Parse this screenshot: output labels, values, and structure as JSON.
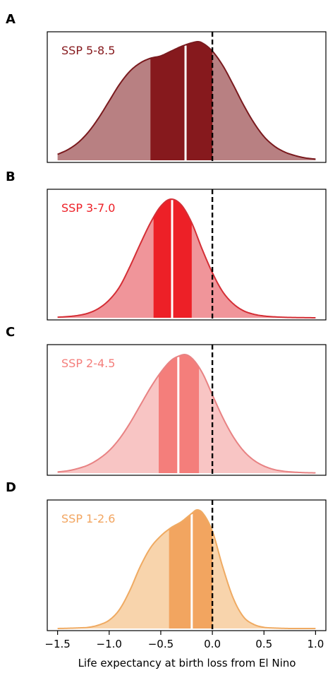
{
  "chart_data": [
    {
      "type": "area",
      "panel": "A",
      "label": "SSP 5-8.5",
      "colors": {
        "line": "#7a1a1e",
        "fill": "#b88082",
        "band": "#86191d"
      },
      "xlim": [
        -1.6,
        1.1
      ],
      "reference_line_x": 0.0,
      "mode": -0.14,
      "median": -0.26,
      "band": [
        -0.6,
        0.0
      ],
      "density": {
        "x": [
          -1.5,
          -1.4,
          -1.3,
          -1.2,
          -1.1,
          -1.0,
          -0.9,
          -0.8,
          -0.7,
          -0.6,
          -0.5,
          -0.4,
          -0.3,
          -0.2,
          -0.14,
          -0.1,
          0.0,
          0.1,
          0.2,
          0.3,
          0.4,
          0.5,
          0.6,
          0.7,
          0.8,
          0.9,
          1.0
        ],
        "y": [
          0.05,
          0.09,
          0.15,
          0.24,
          0.36,
          0.5,
          0.64,
          0.75,
          0.82,
          0.86,
          0.88,
          0.92,
          0.96,
          0.99,
          1.0,
          0.99,
          0.92,
          0.8,
          0.64,
          0.47,
          0.32,
          0.2,
          0.12,
          0.07,
          0.04,
          0.02,
          0.01
        ]
      }
    },
    {
      "type": "area",
      "panel": "B",
      "label": "SSP 3-7.0",
      "colors": {
        "line": "#d42e35",
        "fill": "#f0959a",
        "band": "#ed2027"
      },
      "xlim": [
        -1.6,
        1.1
      ],
      "reference_line_x": 0.0,
      "mode": -0.38,
      "median": -0.39,
      "band": [
        -0.57,
        -0.2
      ],
      "density": {
        "x": [
          -1.5,
          -1.4,
          -1.3,
          -1.2,
          -1.1,
          -1.0,
          -0.9,
          -0.8,
          -0.7,
          -0.6,
          -0.5,
          -0.4,
          -0.3,
          -0.2,
          -0.1,
          0.0,
          0.1,
          0.2,
          0.3,
          0.4,
          0.5,
          0.6,
          0.7,
          0.8,
          0.9,
          1.0
        ],
        "y": [
          0.005,
          0.01,
          0.02,
          0.04,
          0.08,
          0.15,
          0.26,
          0.43,
          0.62,
          0.8,
          0.94,
          1.0,
          0.95,
          0.8,
          0.58,
          0.38,
          0.22,
          0.12,
          0.06,
          0.03,
          0.015,
          0.008,
          0.004,
          0.002,
          0.001,
          0.0
        ]
      }
    },
    {
      "type": "area",
      "panel": "C",
      "label": "SSP 2-4.5",
      "colors": {
        "line": "#e88283",
        "fill": "#f8c5c4",
        "band": "#f47e7b"
      },
      "xlim": [
        -1.6,
        1.1
      ],
      "reference_line_x": 0.0,
      "mode": -0.27,
      "median": -0.33,
      "band": [
        -0.52,
        -0.13
      ],
      "density": {
        "x": [
          -1.5,
          -1.4,
          -1.3,
          -1.2,
          -1.1,
          -1.0,
          -0.9,
          -0.8,
          -0.7,
          -0.6,
          -0.5,
          -0.4,
          -0.3,
          -0.27,
          -0.2,
          -0.1,
          0.0,
          0.1,
          0.2,
          0.3,
          0.4,
          0.5,
          0.6,
          0.7,
          0.8,
          0.9,
          1.0
        ],
        "y": [
          0.01,
          0.02,
          0.04,
          0.07,
          0.12,
          0.19,
          0.29,
          0.42,
          0.57,
          0.72,
          0.85,
          0.95,
          0.995,
          1.0,
          0.97,
          0.85,
          0.66,
          0.47,
          0.31,
          0.19,
          0.11,
          0.06,
          0.03,
          0.015,
          0.008,
          0.004,
          0.002
        ]
      }
    },
    {
      "type": "area",
      "panel": "D",
      "label": "SSP 1-2.6",
      "colors": {
        "line": "#efaa62",
        "fill": "#f8d4ac",
        "band": "#f2a560"
      },
      "xlim": [
        -1.6,
        1.1
      ],
      "reference_line_x": 0.0,
      "mode": -0.15,
      "median": -0.2,
      "band": [
        -0.42,
        0.0
      ],
      "density": {
        "x": [
          -1.5,
          -1.4,
          -1.3,
          -1.2,
          -1.1,
          -1.0,
          -0.9,
          -0.8,
          -0.7,
          -0.6,
          -0.5,
          -0.4,
          -0.3,
          -0.2,
          -0.15,
          -0.1,
          0.0,
          0.1,
          0.2,
          0.3,
          0.4,
          0.5,
          0.6,
          0.7,
          0.8,
          0.9,
          1.0
        ],
        "y": [
          0.0,
          0.002,
          0.005,
          0.01,
          0.03,
          0.07,
          0.16,
          0.32,
          0.52,
          0.68,
          0.78,
          0.85,
          0.9,
          0.97,
          1.0,
          0.98,
          0.82,
          0.52,
          0.26,
          0.1,
          0.035,
          0.01,
          0.004,
          0.001,
          0.0,
          0.0,
          0.0
        ]
      }
    }
  ],
  "x_axis": {
    "ticks": [
      -1.5,
      -1.0,
      -0.5,
      0.0,
      0.5,
      1.0
    ],
    "tick_labels": [
      "−1.5",
      "−1.0",
      "−0.5",
      "0.0",
      "0.5",
      "1.0"
    ],
    "label": "Life expectancy at birth loss from El Nino"
  }
}
